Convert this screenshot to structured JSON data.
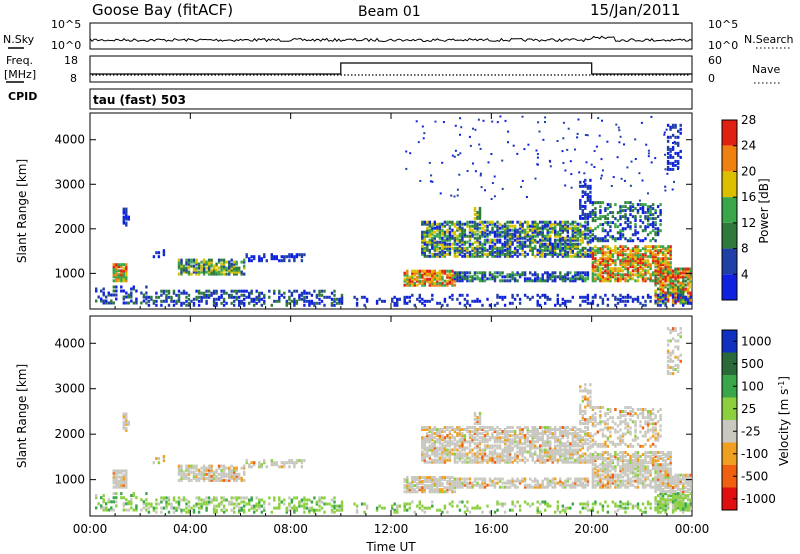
{
  "header": {
    "station": "Goose Bay (fitACF)",
    "beam": "Beam 01",
    "date": "15/Jan/2011"
  },
  "labels": {
    "nsky": "N.Sky",
    "nsearch": "N.Search",
    "freq": "Freq.",
    "freq_unit": "[MHz]",
    "nave": "Nave",
    "cpid": "CPID",
    "cpid_value": "tau (fast) 503",
    "slant_range": "Slant Range [km]",
    "power": "Power [dB]",
    "velocity_prefix": "Velocity [m s",
    "velocity_suffix": "]",
    "velocity_exp": "-1",
    "time_axis": "Time UT"
  },
  "chart_data": [
    {
      "type": "line",
      "panel": "noise",
      "left_ticks": [
        "10^5",
        "10^0"
      ],
      "right_ticks": [
        "10^5",
        "10^0"
      ],
      "note": "N.Sky solid line, N.Search dotted line near 10^0"
    },
    {
      "type": "line",
      "panel": "frequency-nave",
      "left_ticks": [
        "18",
        "8"
      ],
      "right_ticks": [
        "60",
        "0"
      ],
      "freq_series": {
        "name": "Freq.",
        "x": [
          "00:00",
          "10:00",
          "10:00",
          "20:00",
          "20:00",
          "24:00"
        ],
        "y": [
          8,
          8,
          18,
          18,
          8,
          8
        ]
      },
      "nave_series": {
        "name": "Nave",
        "value": 10
      }
    },
    {
      "type": "heatmap",
      "panel": "power",
      "x_ticks": [
        "00:00",
        "04:00",
        "08:00",
        "12:00",
        "16:00",
        "20:00",
        "00:00"
      ],
      "y_ticks": [
        "1000",
        "2000",
        "3000",
        "4000"
      ],
      "ylim": [
        200,
        4600
      ],
      "colorbar_ticks": [
        "4",
        "8",
        "12",
        "16",
        "20",
        "24",
        "28"
      ],
      "colors": [
        "#1020e0",
        "#2040a8",
        "#2f7a3a",
        "#3aa64a",
        "#dcc000",
        "#f08010",
        "#e02010"
      ]
    },
    {
      "type": "heatmap",
      "panel": "velocity",
      "x_ticks": [
        "00:00",
        "04:00",
        "08:00",
        "12:00",
        "16:00",
        "20:00",
        "00:00"
      ],
      "y_ticks": [
        "1000",
        "2000",
        "3000",
        "4000"
      ],
      "ylim": [
        200,
        4600
      ],
      "colorbar_ticks": [
        "1000",
        "500",
        "100",
        "25",
        "-25",
        "-100",
        "-500",
        "-1000"
      ],
      "colors": [
        "#1030c0",
        "#2a6a3a",
        "#3aa64a",
        "#8cd040",
        "#c8c8c0",
        "#f0a020",
        "#f06010",
        "#e01010"
      ]
    }
  ]
}
